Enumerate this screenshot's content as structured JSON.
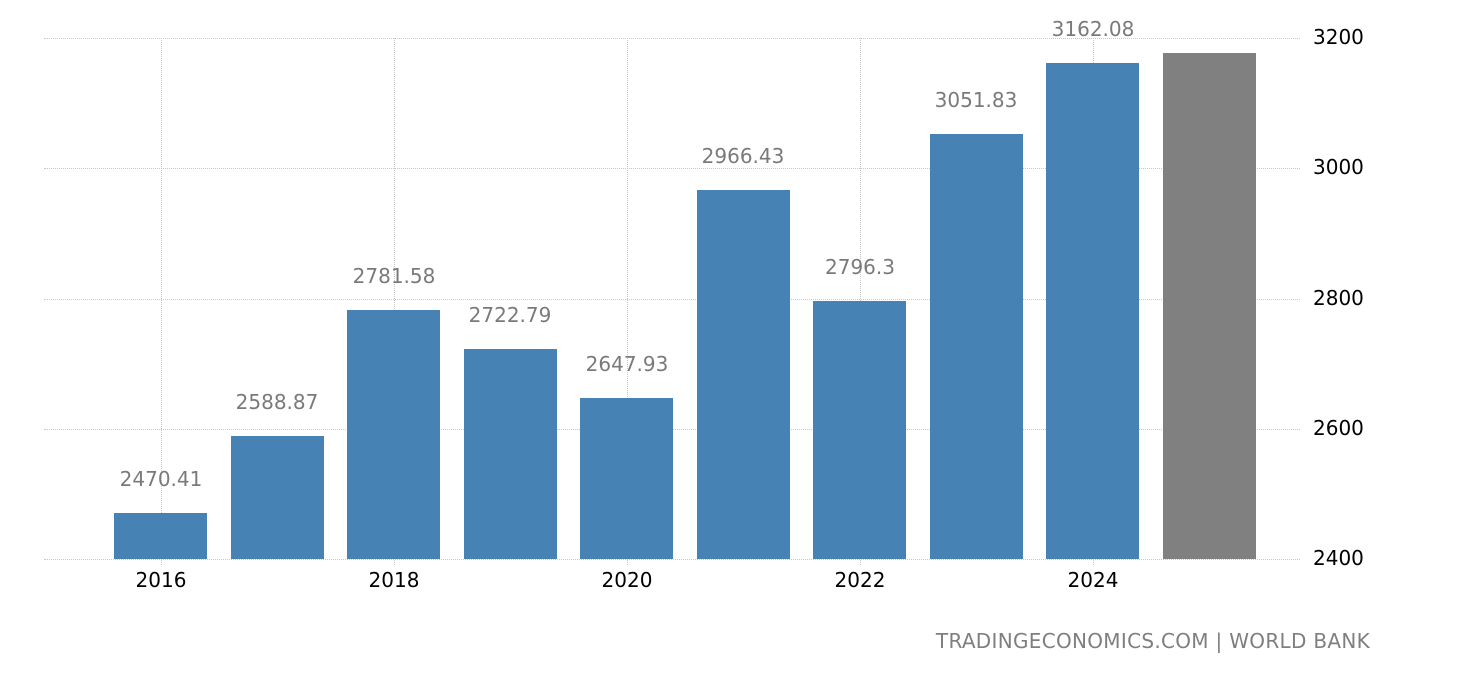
{
  "chart_data": {
    "type": "bar",
    "title": "",
    "xlabel": "",
    "ylabel": "",
    "categories": [
      "2016",
      "2017",
      "2018",
      "2019",
      "2020",
      "2021",
      "2022",
      "2023",
      "2024",
      "2025"
    ],
    "values": [
      2470.41,
      2588.87,
      2781.58,
      2722.79,
      2647.93,
      2966.43,
      2796.3,
      3051.83,
      3162.08,
      3177
    ],
    "value_labels": [
      "2470.41",
      "2588.87",
      "2781.58",
      "2722.79",
      "2647.93",
      "2966.43",
      "2796.3",
      "3051.83",
      "3162.08",
      ""
    ],
    "forecast_index": 9,
    "ylim": [
      2400,
      3200
    ],
    "yticks": [
      "2400",
      "2600",
      "2800",
      "3000",
      "3200"
    ],
    "xticks": [
      "2016",
      "2018",
      "2020",
      "2022",
      "2024"
    ],
    "grid": true,
    "y_axis_position": "right",
    "colors": {
      "bar": "#4682b4",
      "forecast_bar": "#808080",
      "label": "#7a7a7a",
      "grid": "#c8c8c8"
    }
  },
  "footer": {
    "source": "TRADINGECONOMICS.COM | WORLD BANK"
  }
}
